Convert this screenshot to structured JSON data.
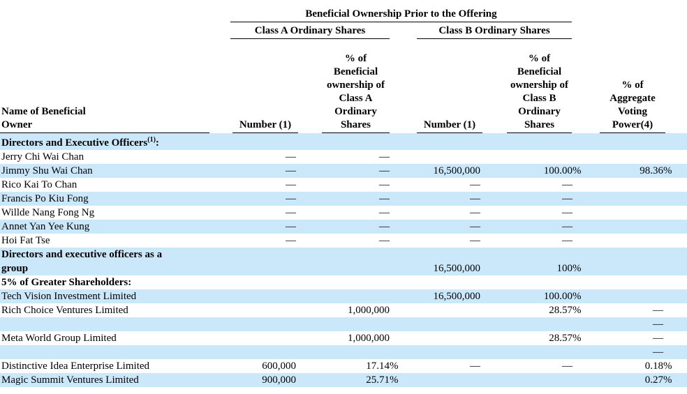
{
  "colors": {
    "row_highlight": "#cbe8fb",
    "text": "#000000",
    "background": "#ffffff"
  },
  "table": {
    "title": "Beneficial Ownership Prior to the Offering",
    "class_a_header": "Class A Ordinary Shares",
    "class_b_header": "Class B Ordinary Shares",
    "name_header": "Name of Beneficial\nOwner",
    "col_headers": {
      "a_number": "Number (1)",
      "a_pct": "% of\nBeneficial\nownership of\nClass A\nOrdinary\nShares",
      "b_number": "Number (1)",
      "b_pct": "% of\nBeneficial\nownership of\nClass B\nOrdinary\nShares",
      "voting": "% of\nAggregate\nVoting\nPower(4)"
    },
    "rows": [
      {
        "bg": "highlight",
        "bold": true,
        "name": "Directors and Executive Officers",
        "sup": "(1)",
        "name_after": ":",
        "cells": [
          "",
          "",
          "",
          "",
          ""
        ]
      },
      {
        "bg": "plain",
        "name": "Jerry Chi Wai Chan",
        "cells": [
          "—",
          "—",
          "",
          "",
          ""
        ]
      },
      {
        "bg": "highlight",
        "name": "Jimmy Shu Wai Chan",
        "cells": [
          "—",
          "—",
          "16,500,000",
          "100.00%",
          "98.36%"
        ]
      },
      {
        "bg": "plain",
        "name": "Rico Kai To Chan",
        "cells": [
          "—",
          "—",
          "—",
          "—",
          ""
        ]
      },
      {
        "bg": "highlight",
        "name": "Francis Po Kiu Fong",
        "cells": [
          "—",
          "—",
          "—",
          "—",
          ""
        ]
      },
      {
        "bg": "plain",
        "name": "Willde Nang Fong Ng",
        "cells": [
          "—",
          "—",
          "—",
          "—",
          ""
        ]
      },
      {
        "bg": "highlight",
        "name": "Annet Yan Yee Kung",
        "cells": [
          "—",
          "—",
          "—",
          "—",
          ""
        ]
      },
      {
        "bg": "plain",
        "name": "Hoi Fat Tse",
        "cells": [
          "—",
          "—",
          "—",
          "—",
          ""
        ]
      },
      {
        "bg": "highlight",
        "bold": true,
        "tall": true,
        "name": "Directors and executive officers as a\ngroup",
        "cells": [
          "",
          "",
          "16,500,000",
          "100%",
          ""
        ]
      },
      {
        "bg": "plain",
        "bold": true,
        "name": "5% of Greater Shareholders:",
        "cells": [
          "",
          "",
          "",
          "",
          ""
        ]
      },
      {
        "bg": "highlight",
        "name": "Tech Vision Investment Limited",
        "cells": [
          "",
          "",
          "16,500,000",
          "100.00%",
          ""
        ]
      },
      {
        "bg": "plain",
        "name": "Rich Choice Ventures Limited",
        "cells": [
          "",
          "1,000,000",
          "",
          "28.57%",
          "—"
        ]
      },
      {
        "bg": "highlight",
        "name": "",
        "cells": [
          "",
          "",
          "",
          "",
          "—"
        ]
      },
      {
        "bg": "plain",
        "name": "Meta World Group Limited",
        "cells": [
          "",
          "1,000,000",
          "",
          "28.57%",
          "—"
        ]
      },
      {
        "bg": "highlight",
        "name": "",
        "cells": [
          "",
          "",
          "",
          "",
          "—"
        ]
      },
      {
        "bg": "plain",
        "name": "Distinctive Idea Enterprise Limited",
        "cells": [
          "600,000",
          "17.14%",
          "—",
          "—",
          "0.18%"
        ]
      },
      {
        "bg": "highlight",
        "name": "Magic Summit Ventures Limited",
        "cells": [
          "900,000",
          "25.71%",
          "",
          "",
          "0.27%"
        ]
      }
    ]
  }
}
